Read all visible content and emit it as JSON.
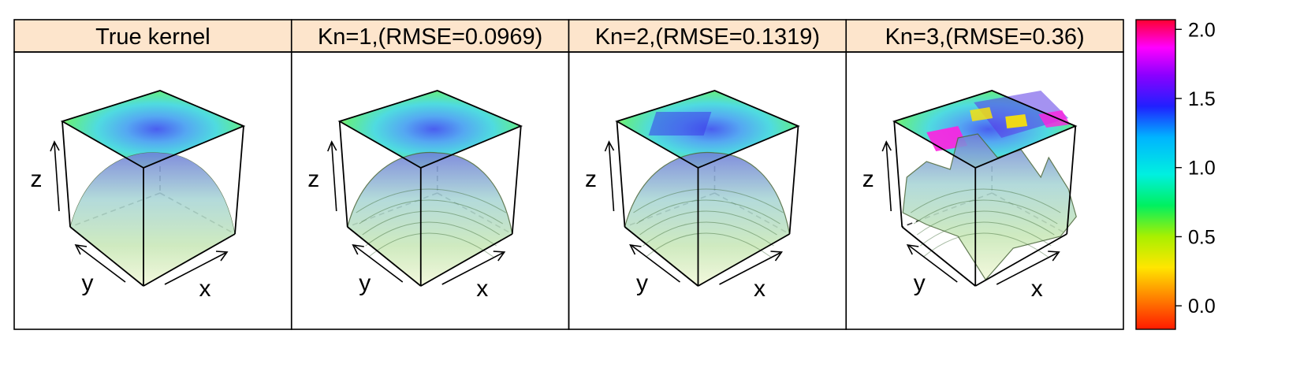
{
  "chart_data": {
    "type": "heatmap",
    "panels": [
      {
        "title": "True kernel",
        "kind": "true"
      },
      {
        "title": "Kn=1,(RMSE=0.0969)",
        "kind": "kn1"
      },
      {
        "title": "Kn=2,(RMSE=0.1319)",
        "kind": "kn2"
      },
      {
        "title": "Kn=3,(RMSE=0.36)",
        "kind": "kn3"
      }
    ],
    "axes": {
      "x": "x",
      "y": "y",
      "z": "z"
    },
    "colorbar": {
      "ticks": [
        "0.0",
        "0.5",
        "1.0",
        "1.5",
        "2.0"
      ],
      "tick_values": [
        0,
        0.5,
        1.0,
        1.5,
        2.0
      ],
      "range": [
        -0.17,
        2.07
      ]
    },
    "strip_color": "#fde5cc"
  }
}
